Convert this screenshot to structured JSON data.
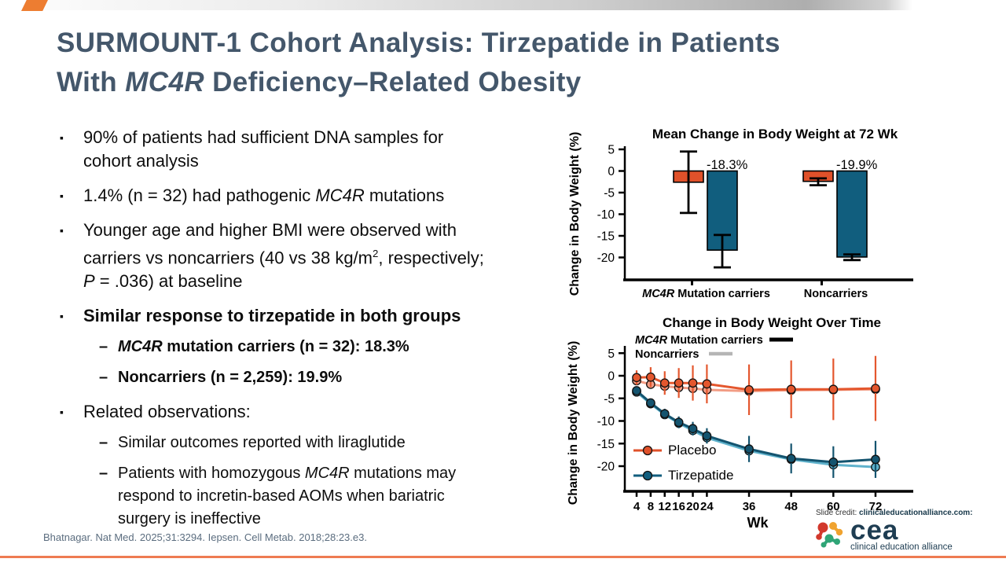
{
  "slide": {
    "title_lines": [
      [
        {
          "t": "SURMOUNT-1 Cohort Analysis: Tirzepatide in Patients"
        }
      ],
      [
        {
          "t": "With "
        },
        {
          "t": "MC4R",
          "i": 1
        },
        {
          "t": " Deficiency–Related Obesity"
        }
      ]
    ],
    "marker_l1": "▪",
    "marker_l2": "–",
    "bullets": [
      {
        "level": 1,
        "runs": [
          {
            "t": "90% of patients had sufficient DNA samples for\ncohort analysis"
          }
        ]
      },
      {
        "level": 1,
        "runs": [
          {
            "t": "1.4% (n = 32) had pathogenic "
          },
          {
            "t": "MC4R",
            "i": 1
          },
          {
            "t": " mutations"
          }
        ]
      },
      {
        "level": 1,
        "runs": [
          {
            "t": "Younger age and higher BMI were observed with\ncarriers vs noncarriers (40 vs 38 kg/m"
          },
          {
            "t": "2",
            "sup": 1
          },
          {
            "t": ", respectively;\n"
          },
          {
            "t": "P",
            "i": 1
          },
          {
            "t": " = .036) at baseline"
          }
        ]
      },
      {
        "level": 1,
        "runs": [
          {
            "t": "Similar response to tirzepatide in both groups",
            "b": 1
          }
        ]
      },
      {
        "level": 2,
        "runs": [
          {
            "t": "MC4R",
            "b": 1,
            "i": 1
          },
          {
            "t": " mutation carriers (n = 32): 18.3%",
            "b": 1
          }
        ]
      },
      {
        "level": 2,
        "runs": [
          {
            "t": "Noncarriers (n = 2,259): 19.9%",
            "b": 1
          }
        ]
      },
      {
        "level": 1,
        "runs": [
          {
            "t": "Related observations:"
          }
        ]
      },
      {
        "level": 2,
        "runs": [
          {
            "t": "Similar outcomes reported with liraglutide"
          }
        ]
      },
      {
        "level": 2,
        "runs": [
          {
            "t": "Patients with homozygous "
          },
          {
            "t": "MC4R",
            "i": 1
          },
          {
            "t": " mutations may\nrespond to incretin-based AOMs when bariatric\nsurgery is ineffective"
          }
        ]
      }
    ],
    "footer_citation": "Bhatnagar. Nat Med. 2025;31:3294. Iepsen. Cell Metab. 2018;28:23.e3.",
    "slide_credit": {
      "prefix": "Slide credit: ",
      "source": "clinicaleducationalliance.com:"
    },
    "logo": {
      "name": "cea",
      "subtitle": "clinical education alliance",
      "colors": {
        "red": "#D2382C",
        "orange": "#F0A32F",
        "green": "#2FA577",
        "text": "#1E3D52"
      }
    },
    "accent_colors": {
      "title_text": "#44576B",
      "corner_accent": "#ED7D31",
      "bottom_rule": "#EE7B52",
      "footer_text": "#5B6D7F"
    }
  },
  "chart_data": [
    {
      "type": "bar",
      "title": "Mean Change in Body Weight at 72 Wk",
      "ylabel": "Change in Body Weight (%)",
      "ylim": [
        -23.5,
        5
      ],
      "yticks": [
        5,
        0,
        -5,
        -10,
        -15,
        -20
      ],
      "error_color": "#000000",
      "groups": [
        {
          "label": "MC4R Mutation carriers",
          "label_italic_prefix": "MC4R",
          "bars": [
            {
              "name": "Placebo",
              "value": -2.6,
              "err_high": 4.5,
              "err_low": -9.7,
              "color": "#E0512A"
            },
            {
              "name": "Tirzepatide",
              "value": -18.3,
              "err_high": -14.8,
              "err_low": -22.3,
              "color": "#115E7E",
              "annotation": "-18.3%"
            }
          ]
        },
        {
          "label": "Noncarriers",
          "bars": [
            {
              "name": "Placebo",
              "value": -2.4,
              "err_high": -1.7,
              "err_low": -3.3,
              "color": "#E0512A"
            },
            {
              "name": "Tirzepatide",
              "value": -19.9,
              "err_high": -19.3,
              "err_low": -20.6,
              "color": "#115E7E",
              "annotation": "-19.9%"
            }
          ]
        }
      ]
    },
    {
      "type": "line",
      "title": "Change in Body Weight Over Time",
      "ylabel": "Change in Body Weight (%)",
      "xlabel": "Wk",
      "x": [
        4,
        8,
        12,
        16,
        20,
        24,
        36,
        48,
        60,
        72
      ],
      "ylim": [
        -24,
        6.5
      ],
      "yticks": [
        5,
        0,
        -5,
        -10,
        -15,
        -20
      ],
      "top_legend": [
        {
          "label": "MC4R Mutation carriers",
          "italic_prefix": "MC4R",
          "color": "#000000"
        },
        {
          "label": "Noncarriers",
          "color": "#B5B5B5"
        }
      ],
      "inner_legend": [
        {
          "label": "Placebo",
          "color": "#E0512A"
        },
        {
          "label": "Tirzepatide",
          "color": "#115E7E"
        }
      ],
      "series": [
        {
          "name": "Placebo - Noncarriers",
          "color": "#F29C84",
          "values": [
            -1.1,
            -1.9,
            -2.3,
            -2.6,
            -2.8,
            -3.1,
            -3.4,
            -3.2,
            -3.1,
            -3.0
          ],
          "err": [
            0.3,
            0.3,
            0.4,
            0.4,
            0.5,
            0.5,
            0.6,
            0.6,
            0.7,
            0.7
          ]
        },
        {
          "name": "Tirzepatide - Noncarriers",
          "color": "#5FB2CC",
          "values": [
            -3.6,
            -6.2,
            -8.6,
            -10.5,
            -12.1,
            -13.7,
            -16.6,
            -18.5,
            -19.7,
            -20.2
          ],
          "err": [
            0.3,
            0.4,
            0.4,
            0.5,
            0.5,
            0.6,
            0.7,
            0.8,
            0.9,
            1.0
          ]
        },
        {
          "name": "Placebo - MC4R Mutation carriers",
          "color": "#E4572E",
          "values": [
            -0.4,
            -0.3,
            -1.6,
            -1.6,
            -1.6,
            -1.8,
            -3.1,
            -3.0,
            -3.0,
            -2.8
          ],
          "err": [
            1.6,
            2.2,
            2.6,
            3.3,
            3.9,
            4.3,
            5.6,
            6.4,
            6.8,
            7.2
          ]
        },
        {
          "name": "Tirzepatide - MC4R Mutation carriers",
          "color": "#14546F",
          "values": [
            -3.3,
            -6.0,
            -8.4,
            -10.3,
            -11.7,
            -13.3,
            -16.2,
            -18.3,
            -19.1,
            -18.5
          ],
          "err": [
            0.8,
            0.9,
            1.1,
            1.3,
            1.5,
            1.7,
            2.9,
            3.3,
            3.5,
            4.1
          ]
        }
      ]
    }
  ]
}
